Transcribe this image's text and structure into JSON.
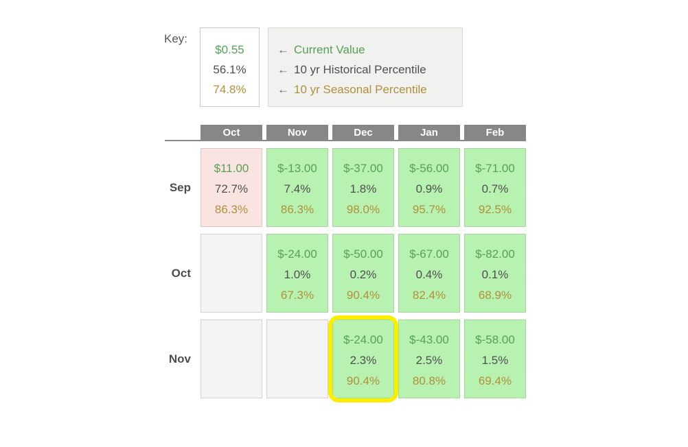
{
  "key": {
    "label": "Key:",
    "sample": {
      "value": "$0.55",
      "historical": "56.1%",
      "seasonal": "74.8%"
    },
    "legend": [
      {
        "arrow": "←",
        "label": "Current Value",
        "style": "value"
      },
      {
        "arrow": "←",
        "label": "10 yr Historical Percentile",
        "style": "historical"
      },
      {
        "arrow": "←",
        "label": "10 yr Seasonal Percentile",
        "style": "seasonal"
      }
    ]
  },
  "matrix": {
    "columns": [
      "Oct",
      "Nov",
      "Dec",
      "Jan",
      "Feb"
    ],
    "rows": [
      {
        "label": "Sep",
        "cells": [
          {
            "variant": "pink",
            "highlight": false,
            "value": "$11.00",
            "historical": "72.7%",
            "seasonal": "86.3%"
          },
          {
            "variant": "green",
            "highlight": false,
            "value": "$-13.00",
            "historical": "7.4%",
            "seasonal": "86.3%"
          },
          {
            "variant": "green",
            "highlight": false,
            "value": "$-37.00",
            "historical": "1.8%",
            "seasonal": "98.0%"
          },
          {
            "variant": "green",
            "highlight": false,
            "value": "$-56.00",
            "historical": "0.9%",
            "seasonal": "95.7%"
          },
          {
            "variant": "green",
            "highlight": false,
            "value": "$-71.00",
            "historical": "0.7%",
            "seasonal": "92.5%"
          }
        ]
      },
      {
        "label": "Oct",
        "cells": [
          {
            "variant": "empty",
            "highlight": false
          },
          {
            "variant": "green",
            "highlight": false,
            "value": "$-24.00",
            "historical": "1.0%",
            "seasonal": "67.3%"
          },
          {
            "variant": "green",
            "highlight": false,
            "value": "$-50.00",
            "historical": "0.2%",
            "seasonal": "90.4%"
          },
          {
            "variant": "green",
            "highlight": false,
            "value": "$-67.00",
            "historical": "0.4%",
            "seasonal": "82.4%"
          },
          {
            "variant": "green",
            "highlight": false,
            "value": "$-82.00",
            "historical": "0.1%",
            "seasonal": "68.9%"
          }
        ]
      },
      {
        "label": "Nov",
        "cells": [
          {
            "variant": "empty",
            "highlight": false
          },
          {
            "variant": "empty",
            "highlight": false
          },
          {
            "variant": "green",
            "highlight": true,
            "value": "$-24.00",
            "historical": "2.3%",
            "seasonal": "90.4%"
          },
          {
            "variant": "green",
            "highlight": false,
            "value": "$-43.00",
            "historical": "2.5%",
            "seasonal": "80.8%"
          },
          {
            "variant": "green",
            "highlight": false,
            "value": "$-58.00",
            "historical": "1.5%",
            "seasonal": "69.4%"
          }
        ]
      }
    ]
  },
  "colors": {
    "value_green": "#56a156",
    "historical_gray": "#4f4f4f",
    "seasonal_gold": "#b0903c",
    "cell_green": "#b8f2b0",
    "cell_pink": "#f9e4e1",
    "header_gray": "#878787",
    "highlight_yellow": "#fdee00"
  }
}
